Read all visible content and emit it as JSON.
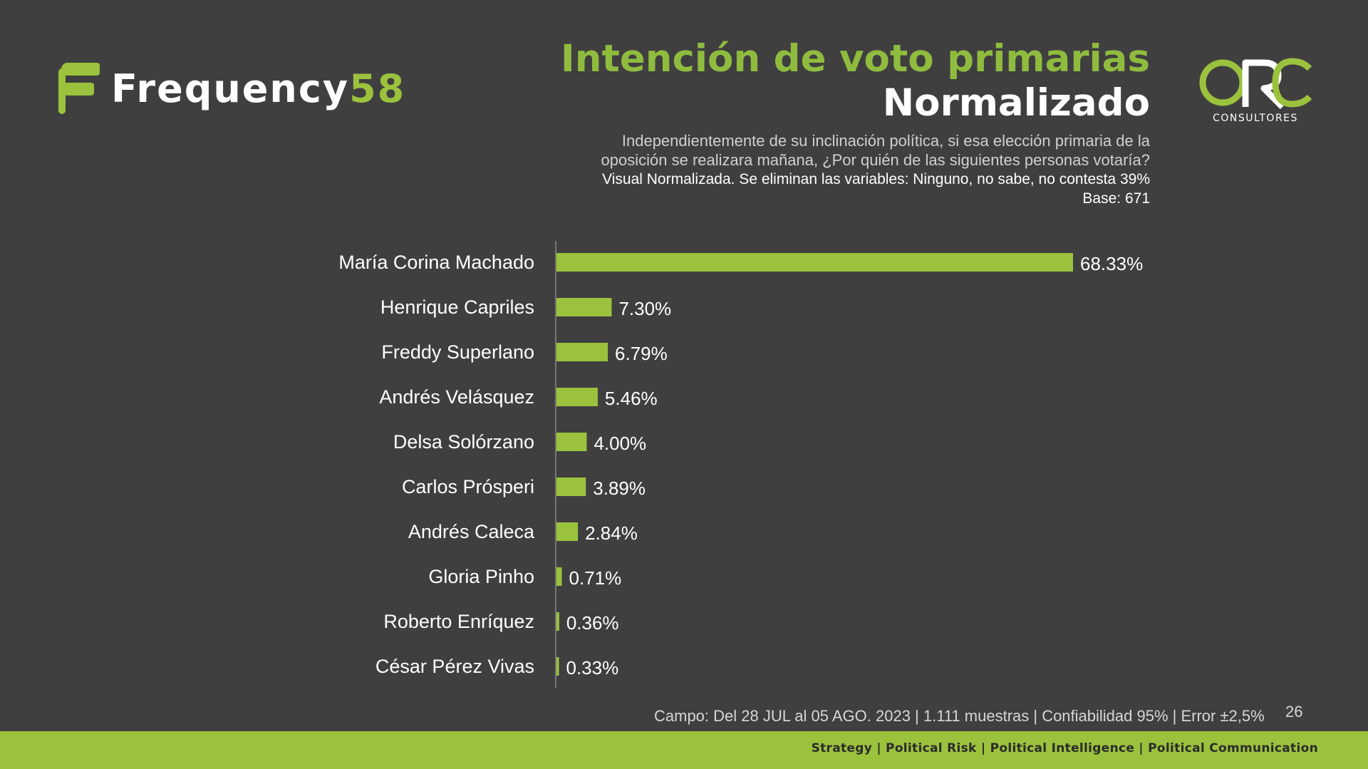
{
  "brand": {
    "left_logo_word": "Frequency",
    "left_logo_number": "58",
    "right_logo_mark": "ORC",
    "right_logo_sub": "CONSULTORES"
  },
  "title": {
    "line1": "Intención de voto primarias",
    "line2": "Normalizado"
  },
  "description": {
    "question_line1": "Independientemente de su inclinación política, si esa elección primaria de la",
    "question_line2": "oposición se realizara mañana, ¿Por quién de las siguientes personas votaría?",
    "note": "Visual Normalizada. Se eliminan las variables: Ninguno, no sabe, no contesta 39%",
    "base": "Base: 671"
  },
  "chart_data": {
    "type": "bar",
    "orientation": "horizontal",
    "categories": [
      "María Corina Machado",
      "Henrique Capriles",
      "Freddy Superlano",
      "Andrés Velásquez",
      "Delsa Solórzano",
      "Carlos Prósperi",
      "Andrés Caleca",
      "Gloria Pinho",
      "Roberto Enríquez",
      "César Pérez Vivas"
    ],
    "values": [
      68.33,
      7.3,
      6.79,
      5.46,
      4.0,
      3.89,
      2.84,
      0.71,
      0.36,
      0.33
    ],
    "data_labels": [
      "68.33%",
      "7.30%",
      "6.79%",
      "5.46%",
      "4.00%",
      "3.89%",
      "2.84%",
      "0.71%",
      "0.36%",
      "0.33%"
    ],
    "bar_color": "#9bc23c",
    "xlim": [
      0,
      68.33
    ],
    "grid": false,
    "legend": "none"
  },
  "footer": {
    "campo": "Campo: Del 28 JUL al 05 AGO.  2023 | 1.111  muestras | Confiabilidad 95% | Error ±2,5%",
    "page_number": "26",
    "tagline": "Strategy |  Political Risk |  Political Intelligence |  Political Communication"
  },
  "colors": {
    "background": "#403f40",
    "accent_green": "#9bc23c",
    "title_green": "#8fbc3e"
  }
}
